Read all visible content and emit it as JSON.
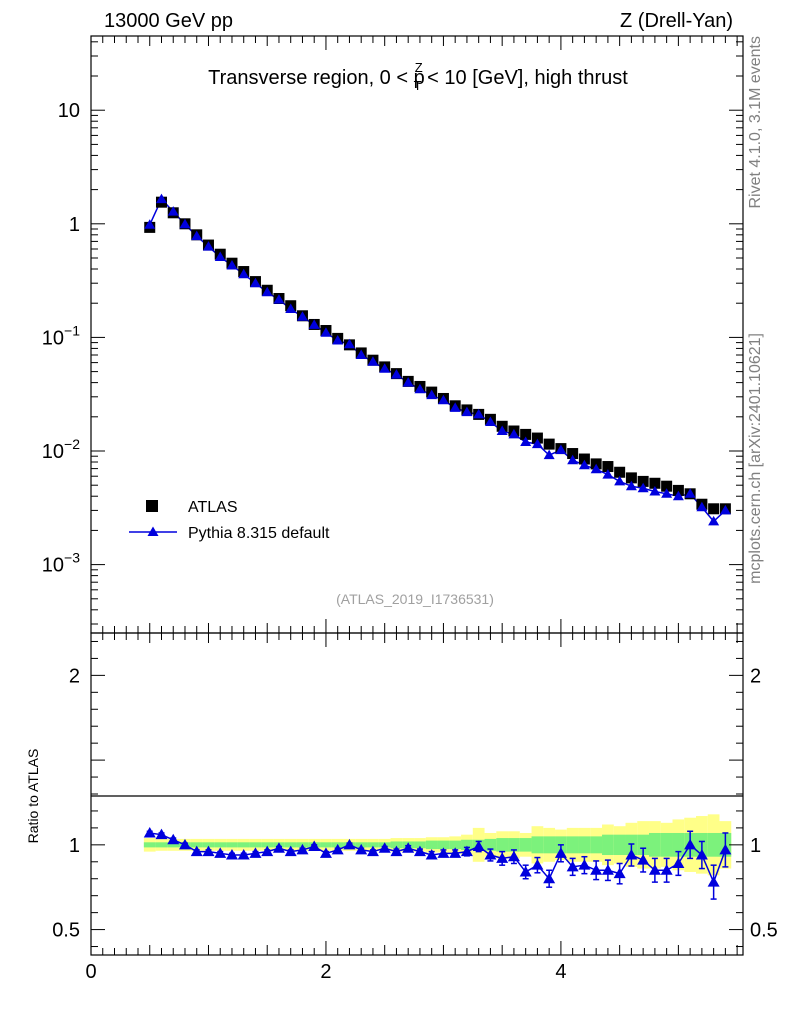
{
  "header": {
    "left": "13000 GeV pp",
    "right": "Z (Drell-Yan)"
  },
  "side_labels": {
    "rivet": "Rivet 4.1.0,  3.1M events",
    "mcplots": "mcplots.cern.ch [arXiv:2401.10621]"
  },
  "reference": "(ATLAS_2019_I1736531)",
  "colors": {
    "data": "#000000",
    "mc": "#0000dd",
    "band_inner": "#7cf27c",
    "band_outer": "#ffff88",
    "side_text": "#808080"
  },
  "chart_data": [
    {
      "type": "scatter",
      "panel": "main",
      "title_parts": {
        "before": "Transverse region, 0 < p",
        "sub": "T",
        "sup": "Z",
        "after": " < 10 [GeV], high thrust"
      },
      "yscale": "log",
      "ylim": [
        0.00025,
        45
      ],
      "xlim": [
        0,
        5.55
      ],
      "ytick_labels": [
        {
          "value": 10,
          "text": "10"
        },
        {
          "value": 1,
          "text": "1"
        },
        {
          "value": 0.1,
          "base": "10",
          "exp": "−1"
        },
        {
          "value": 0.01,
          "base": "10",
          "exp": "−2"
        },
        {
          "value": 0.001,
          "base": "10",
          "exp": "−3"
        }
      ],
      "legend": [
        {
          "name": "ATLAS",
          "marker": "square"
        },
        {
          "name": "Pythia 8.315 default",
          "marker": "triangle"
        }
      ],
      "x": [
        0.5,
        0.6,
        0.7,
        0.8,
        0.9,
        1.0,
        1.1,
        1.2,
        1.3,
        1.4,
        1.5,
        1.6,
        1.7,
        1.8,
        1.9,
        2.0,
        2.1,
        2.2,
        2.3,
        2.4,
        2.5,
        2.6,
        2.7,
        2.8,
        2.9,
        3.0,
        3.1,
        3.2,
        3.3,
        3.4,
        3.5,
        3.6,
        3.7,
        3.8,
        3.9,
        4.0,
        4.1,
        4.2,
        4.3,
        4.4,
        4.5,
        4.6,
        4.7,
        4.8,
        4.9,
        5.0,
        5.1,
        5.2,
        5.3,
        5.4
      ],
      "series": [
        {
          "name": "ATLAS",
          "values": [
            0.93,
            1.55,
            1.25,
            1.0,
            0.8,
            0.65,
            0.54,
            0.45,
            0.38,
            0.31,
            0.26,
            0.22,
            0.19,
            0.155,
            0.13,
            0.115,
            0.098,
            0.086,
            0.073,
            0.063,
            0.055,
            0.048,
            0.041,
            0.037,
            0.033,
            0.029,
            0.025,
            0.023,
            0.021,
            0.019,
            0.0165,
            0.015,
            0.014,
            0.013,
            0.0115,
            0.0105,
            0.0095,
            0.0085,
            0.0077,
            0.0073,
            0.0065,
            0.0058,
            0.0054,
            0.0052,
            0.0049,
            0.0045,
            0.0042,
            0.0034,
            0.0031,
            0.0031
          ]
        },
        {
          "name": "Pythia 8.315 default",
          "values": [
            0.98,
            1.65,
            1.28,
            0.99,
            0.78,
            0.63,
            0.51,
            0.43,
            0.36,
            0.3,
            0.25,
            0.215,
            0.178,
            0.152,
            0.129,
            0.11,
            0.094,
            0.087,
            0.07,
            0.061,
            0.053,
            0.047,
            0.04,
            0.035,
            0.031,
            0.028,
            0.024,
            0.022,
            0.021,
            0.018,
            0.015,
            0.014,
            0.012,
            0.0115,
            0.0092,
            0.0102,
            0.0083,
            0.0075,
            0.0069,
            0.0062,
            0.0054,
            0.0049,
            0.0047,
            0.0044,
            0.0042,
            0.004,
            0.0042,
            0.0032,
            0.0024,
            0.003
          ]
        }
      ]
    },
    {
      "type": "scatter",
      "panel": "ratio",
      "ylabel": "Ratio to ATLAS",
      "ylim": [
        0.35,
        2.25
      ],
      "xlim": [
        0,
        5.55
      ],
      "ytick_labels": [
        {
          "value": 2,
          "text": "2"
        },
        {
          "value": 1,
          "text": "1"
        },
        {
          "value": 0.5,
          "text": "0.5"
        }
      ],
      "xtick_labels": [
        {
          "value": 0,
          "text": "0"
        },
        {
          "value": 2,
          "text": "2"
        },
        {
          "value": 4,
          "text": "4"
        }
      ],
      "x": [
        0.5,
        0.6,
        0.7,
        0.8,
        0.9,
        1.0,
        1.1,
        1.2,
        1.3,
        1.4,
        1.5,
        1.6,
        1.7,
        1.8,
        1.9,
        2.0,
        2.1,
        2.2,
        2.3,
        2.4,
        2.5,
        2.6,
        2.7,
        2.8,
        2.9,
        3.0,
        3.1,
        3.2,
        3.3,
        3.4,
        3.5,
        3.6,
        3.7,
        3.8,
        3.9,
        4.0,
        4.1,
        4.2,
        4.3,
        4.4,
        4.5,
        4.6,
        4.7,
        4.8,
        4.9,
        5.0,
        5.1,
        5.2,
        5.3,
        5.4
      ],
      "series": [
        {
          "name": "Pythia 8.315 default",
          "values": [
            1.07,
            1.06,
            1.03,
            1.0,
            0.96,
            0.96,
            0.95,
            0.94,
            0.94,
            0.95,
            0.96,
            0.98,
            0.96,
            0.97,
            0.99,
            0.95,
            0.97,
            1.0,
            0.97,
            0.96,
            0.98,
            0.96,
            0.98,
            0.96,
            0.94,
            0.95,
            0.95,
            0.96,
            0.99,
            0.94,
            0.92,
            0.93,
            0.84,
            0.88,
            0.8,
            0.95,
            0.87,
            0.88,
            0.85,
            0.85,
            0.83,
            0.94,
            0.91,
            0.85,
            0.85,
            0.89,
            1.0,
            0.94,
            0.78,
            0.97
          ],
          "errors": [
            0.01,
            0.01,
            0.01,
            0.01,
            0.01,
            0.01,
            0.01,
            0.01,
            0.01,
            0.01,
            0.01,
            0.01,
            0.01,
            0.01,
            0.01,
            0.01,
            0.01,
            0.01,
            0.01,
            0.01,
            0.01,
            0.015,
            0.015,
            0.015,
            0.02,
            0.02,
            0.02,
            0.025,
            0.03,
            0.035,
            0.04,
            0.04,
            0.04,
            0.045,
            0.05,
            0.05,
            0.05,
            0.05,
            0.055,
            0.06,
            0.06,
            0.065,
            0.07,
            0.07,
            0.07,
            0.07,
            0.08,
            0.08,
            0.1,
            0.1
          ]
        },
        {
          "name": "ATLAS uncertainty (inner)",
          "lower": [
            0.985,
            0.985,
            0.985,
            0.985,
            0.985,
            0.985,
            0.985,
            0.985,
            0.985,
            0.985,
            0.985,
            0.985,
            0.985,
            0.985,
            0.985,
            0.985,
            0.985,
            0.985,
            0.985,
            0.985,
            0.985,
            0.98,
            0.98,
            0.98,
            0.975,
            0.975,
            0.975,
            0.97,
            0.97,
            0.965,
            0.96,
            0.96,
            0.96,
            0.95,
            0.95,
            0.95,
            0.95,
            0.95,
            0.95,
            0.94,
            0.94,
            0.94,
            0.94,
            0.93,
            0.93,
            0.93,
            0.93,
            0.93,
            0.93,
            0.93
          ],
          "upper": [
            1.015,
            1.015,
            1.015,
            1.015,
            1.015,
            1.015,
            1.015,
            1.015,
            1.015,
            1.015,
            1.015,
            1.015,
            1.015,
            1.015,
            1.015,
            1.015,
            1.015,
            1.015,
            1.015,
            1.015,
            1.015,
            1.02,
            1.02,
            1.02,
            1.025,
            1.025,
            1.025,
            1.03,
            1.03,
            1.035,
            1.04,
            1.04,
            1.04,
            1.05,
            1.05,
            1.05,
            1.05,
            1.05,
            1.05,
            1.06,
            1.06,
            1.06,
            1.06,
            1.07,
            1.07,
            1.07,
            1.07,
            1.07,
            1.07,
            1.07
          ]
        },
        {
          "name": "ATLAS uncertainty (outer)",
          "lower": [
            0.96,
            0.965,
            0.965,
            0.965,
            0.965,
            0.965,
            0.965,
            0.965,
            0.965,
            0.965,
            0.965,
            0.965,
            0.965,
            0.965,
            0.965,
            0.965,
            0.965,
            0.965,
            0.965,
            0.965,
            0.965,
            0.96,
            0.96,
            0.96,
            0.955,
            0.955,
            0.95,
            0.94,
            0.9,
            0.93,
            0.92,
            0.92,
            0.93,
            0.89,
            0.9,
            0.91,
            0.9,
            0.9,
            0.9,
            0.88,
            0.89,
            0.87,
            0.86,
            0.86,
            0.87,
            0.85,
            0.84,
            0.83,
            0.82,
            0.86
          ],
          "upper": [
            1.04,
            1.035,
            1.035,
            1.035,
            1.035,
            1.035,
            1.035,
            1.035,
            1.035,
            1.035,
            1.035,
            1.035,
            1.035,
            1.035,
            1.035,
            1.035,
            1.035,
            1.035,
            1.035,
            1.035,
            1.035,
            1.04,
            1.04,
            1.04,
            1.045,
            1.045,
            1.05,
            1.06,
            1.1,
            1.07,
            1.08,
            1.08,
            1.07,
            1.11,
            1.1,
            1.09,
            1.1,
            1.1,
            1.1,
            1.12,
            1.11,
            1.13,
            1.14,
            1.14,
            1.13,
            1.15,
            1.16,
            1.17,
            1.18,
            1.14
          ]
        }
      ]
    }
  ]
}
